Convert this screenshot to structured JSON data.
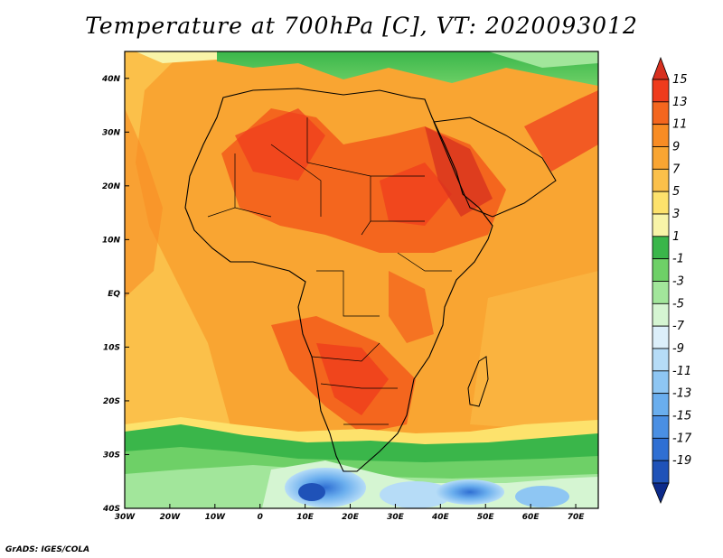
{
  "title": "Temperature at 700hPa [C], VT: 2020093012",
  "credit": "GrADS: IGES/COLA",
  "map": {
    "lon_range": [
      -30,
      75
    ],
    "lat_range": [
      -40,
      45
    ],
    "lon_ticks": [
      "30W",
      "20W",
      "10W",
      "0",
      "10E",
      "20E",
      "30E",
      "40E",
      "50E",
      "60E",
      "70E"
    ],
    "lat_ticks": [
      "40S",
      "30S",
      "20S",
      "10S",
      "EQ",
      "10N",
      "20N",
      "30N",
      "40N"
    ]
  },
  "colorbar": {
    "labels": [
      "15",
      "13",
      "11",
      "9",
      "7",
      "5",
      "3",
      "1",
      "-1",
      "-3",
      "-5",
      "-7",
      "-9",
      "-11",
      "-13",
      "-15",
      "-17",
      "-19"
    ],
    "colors": [
      "#d7301f",
      "#ef3b1c",
      "#f4661e",
      "#f88c24",
      "#f9a532",
      "#fbc04a",
      "#fde26c",
      "#f8f4a8",
      "#3ab64a",
      "#6ed067",
      "#a2e69b",
      "#d5f5d2",
      "#dceffa",
      "#b6dcf7",
      "#8ec6f3",
      "#6aaeee",
      "#4a8fe3",
      "#2f6fd3",
      "#1f52b8",
      "#0c2a8a"
    ]
  }
}
